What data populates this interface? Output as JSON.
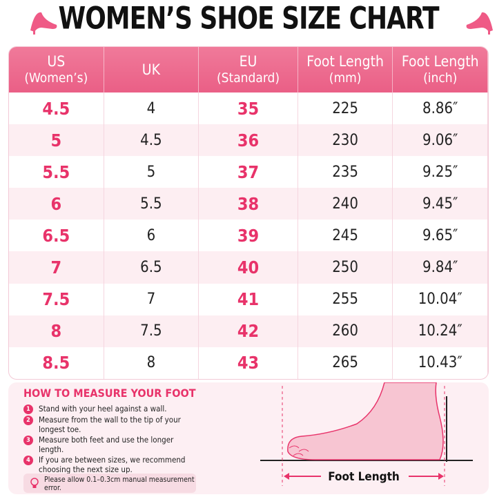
{
  "header": {
    "title": "WOMEN’S SHOE SIZE CHART"
  },
  "table": {
    "headers": [
      [
        "US",
        "(Women’s)"
      ],
      [
        "UK"
      ],
      [
        "EU",
        "(Standard)"
      ],
      [
        "Foot Length",
        "(mm)"
      ],
      [
        "Foot Length",
        "(inch)"
      ]
    ],
    "rows": [
      [
        "4.5",
        "4",
        "35",
        "225",
        "8.86″"
      ],
      [
        "5",
        "4.5",
        "36",
        "230",
        "9.06″"
      ],
      [
        "5.5",
        "5",
        "37",
        "235",
        "9.25″"
      ],
      [
        "6",
        "5.5",
        "38",
        "240",
        "9.45″"
      ],
      [
        "6.5",
        "6",
        "39",
        "245",
        "9.65″"
      ],
      [
        "7",
        "6.5",
        "40",
        "250",
        "9.84″"
      ],
      [
        "7.5",
        "7",
        "41",
        "255",
        "10.04″"
      ],
      [
        "8",
        "7.5",
        "42",
        "260",
        "10.24″"
      ],
      [
        "8.5",
        "8",
        "43",
        "265",
        "10.43″"
      ]
    ]
  },
  "measure": {
    "title": "HOW TO MEASURE YOUR FOOT",
    "steps": [
      {
        "n": "1",
        "text": "Stand with your heel against a wall."
      },
      {
        "n": "2",
        "text": "Measure from the wall to the tip of your longest toe."
      },
      {
        "n": "3",
        "text": "Measure both feet and use the longer length."
      },
      {
        "n": "4",
        "text": "If you are between sizes, we recommend choosing the next size up."
      }
    ],
    "note": "Please allow 0.1–0.3cm manual measurement error.",
    "diagram_label": "Foot Length"
  }
}
